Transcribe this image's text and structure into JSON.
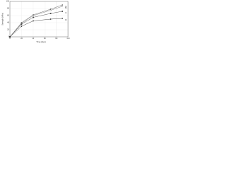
{
  "chart_data": {
    "type": "line",
    "x_label": "Time (days)",
    "y_label": "Strength (MPa)",
    "x": [
      0,
      20,
      40,
      70,
      90
    ],
    "series": [
      {
        "name": "A",
        "color": "#444444",
        "marker": "o",
        "values": [
          0,
          40,
          62,
          78,
          90
        ]
      },
      {
        "name": "B",
        "color": "#666666",
        "marker": "^",
        "values": [
          0,
          38,
          60,
          75,
          86
        ]
      },
      {
        "name": "C",
        "color": "#333333",
        "marker": "s",
        "values": [
          0,
          36,
          55,
          66,
          72
        ]
      },
      {
        "name": "D",
        "color": "#222222",
        "marker": "o",
        "values": [
          0,
          30,
          45,
          50,
          52
        ]
      }
    ],
    "xlim": [
      0,
      100
    ],
    "xticks": [
      0,
      20,
      40,
      60,
      80,
      100
    ],
    "ylim": [
      0,
      100
    ],
    "yticks": [
      0,
      20,
      40,
      60,
      80,
      100
    ],
    "grid": true,
    "legend": "right"
  }
}
